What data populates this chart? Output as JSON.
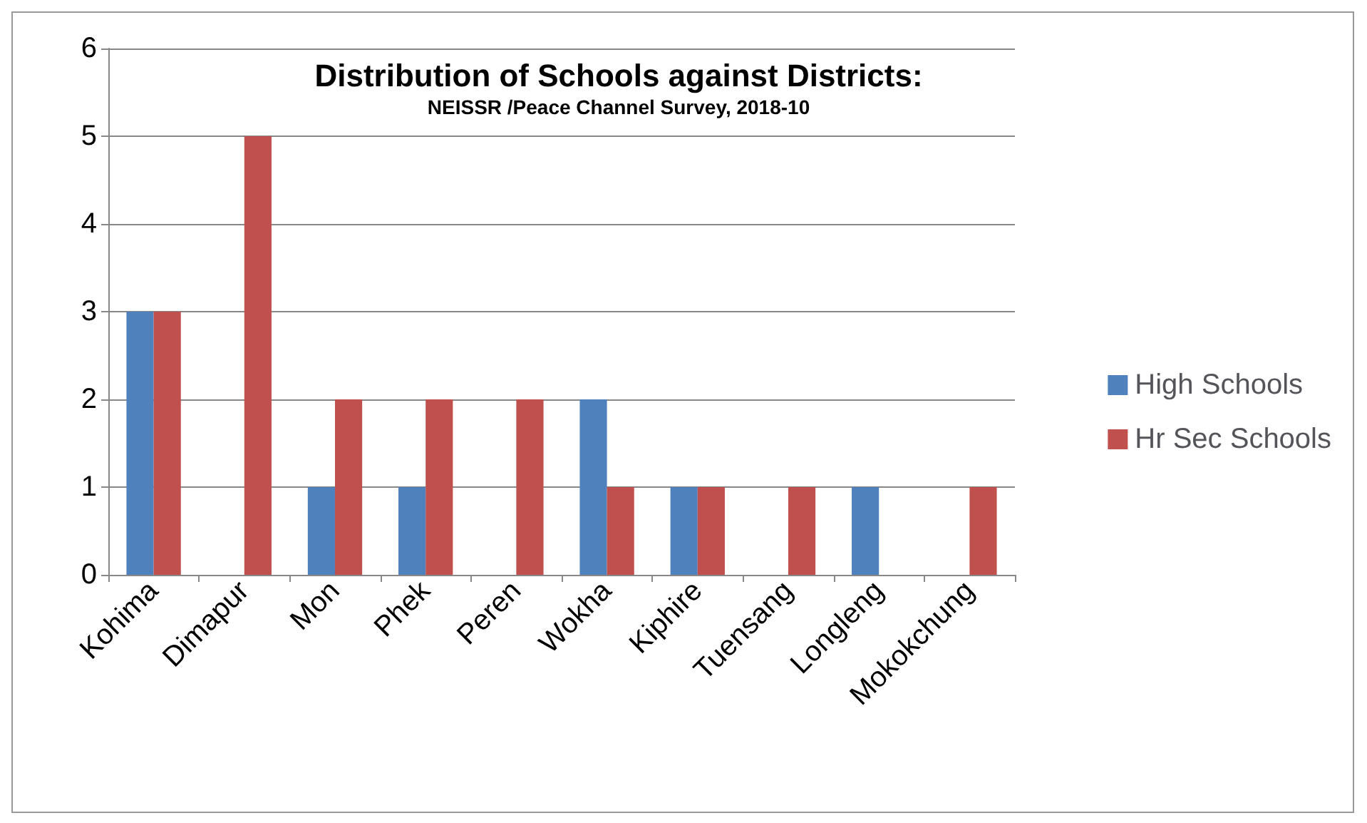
{
  "chart_data": {
    "type": "bar",
    "title": "Distribution of Schools against Districts:",
    "subtitle": "NEISSR /Peace Channel Survey, 2018-10",
    "categories": [
      "Kohima",
      "Dimapur",
      "Mon",
      "Phek",
      "Peren",
      "Wokha",
      "Kiphire",
      "Tuensang",
      "Longleng",
      "Mokokchung"
    ],
    "series": [
      {
        "name": "High Schools",
        "color": "#4f81bd",
        "values": [
          3,
          0,
          1,
          1,
          0,
          2,
          1,
          0,
          1,
          0
        ]
      },
      {
        "name": "Hr Sec Schools",
        "color": "#c0504d",
        "values": [
          3,
          5,
          2,
          2,
          2,
          1,
          1,
          1,
          0,
          1
        ]
      }
    ],
    "ylim": [
      0,
      6
    ],
    "yticks": [
      0,
      1,
      2,
      3,
      4,
      5,
      6
    ],
    "grid": "y",
    "legend": "right"
  }
}
